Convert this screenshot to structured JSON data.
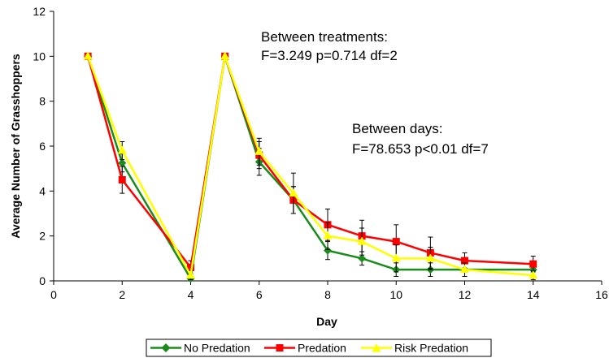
{
  "chart_data": {
    "type": "line",
    "title": "",
    "xlabel": "Day",
    "ylabel": "Average Number of Grasshoppers",
    "xlim": [
      0,
      16
    ],
    "ylim": [
      0,
      12
    ],
    "xticks": [
      "0",
      "2",
      "4",
      "6",
      "8",
      "10",
      "12",
      "14",
      "16"
    ],
    "yticks": [
      "0",
      "2",
      "4",
      "6",
      "8",
      "10",
      "12"
    ],
    "grid": false,
    "legend_position": "bottom",
    "annotations": [
      {
        "lines": [
          "Between treatments:",
          "F=3.249 p=0.714 df=2"
        ]
      },
      {
        "lines": [
          "Between days:",
          "F=78.653 p<0.01 df=7"
        ]
      }
    ],
    "series": [
      {
        "name": "No Predation",
        "color": "#1a8c1a",
        "marker": "diamond",
        "x": [
          1,
          2,
          4,
          5,
          6,
          7,
          8,
          9,
          10,
          11,
          12,
          14
        ],
        "y": [
          10,
          5.25,
          0.1,
          10,
          5.3,
          3.6,
          1.35,
          1.0,
          0.5,
          0.5,
          0.5,
          0.5
        ],
        "err": [
          0,
          0.4,
          0.1,
          0,
          0.6,
          0.6,
          0.4,
          0.3,
          0.3,
          0.3,
          0.3,
          0.3
        ]
      },
      {
        "name": "Predation",
        "color": "#ff0000",
        "marker": "square",
        "x": [
          1,
          2,
          4,
          5,
          6,
          7,
          8,
          9,
          10,
          11,
          12,
          14
        ],
        "y": [
          10,
          4.5,
          0.6,
          10,
          5.6,
          3.6,
          2.5,
          2.0,
          1.75,
          1.25,
          0.9,
          0.75
        ],
        "err": [
          0,
          0.6,
          0.3,
          0,
          0.6,
          0.6,
          0.7,
          0.7,
          0.75,
          0.7,
          0.35,
          0.35
        ]
      },
      {
        "name": "Risk Predation",
        "color": "#ffff00",
        "marker": "triangle",
        "x": [
          1,
          2,
          4,
          5,
          6,
          7,
          8,
          9,
          10,
          11,
          12,
          14
        ],
        "y": [
          10,
          5.8,
          0.25,
          10,
          5.75,
          3.9,
          2.0,
          1.75,
          1.0,
          1.0,
          0.5,
          0.25
        ],
        "err": [
          0,
          0.4,
          0.2,
          0,
          0.6,
          0.9,
          0.6,
          0.6,
          0.6,
          0.5,
          0.3,
          0.2
        ]
      }
    ]
  }
}
